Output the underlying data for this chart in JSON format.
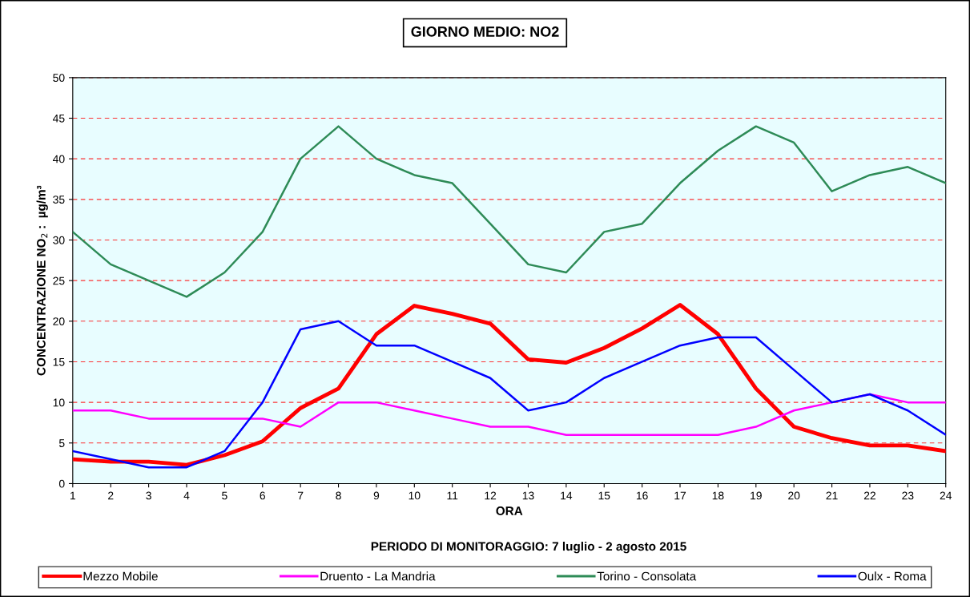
{
  "chart_data": {
    "type": "line",
    "title": "GIORNO MEDIO: NO2",
    "xlabel": "ORA",
    "ylabel": "CONCENTRAZIONE NO$_{2}$ :  µg/m³",
    "annotations": [
      "PERIODO DI MONITORAGGIO: 7 luglio - 2 agosto 2015"
    ],
    "categories": [
      "1",
      "2",
      "3",
      "4",
      "5",
      "6",
      "7",
      "8",
      "9",
      "10",
      "11",
      "12",
      "13",
      "14",
      "15",
      "16",
      "17",
      "18",
      "19",
      "20",
      "21",
      "22",
      "23",
      "24"
    ],
    "series": [
      {
        "name": "Mezzo Mobile",
        "color": "#ff0000",
        "values": [
          3.0,
          2.7,
          2.7,
          2.3,
          3.5,
          5.2,
          9.3,
          11.7,
          18.4,
          21.9,
          20.9,
          19.7,
          15.3,
          14.9,
          16.7,
          19.1,
          22.0,
          18.4,
          11.7,
          7.0,
          5.6,
          4.7,
          4.7,
          4.0
        ]
      },
      {
        "name": "Druento - La Mandria",
        "color": "#ff00ff",
        "values": [
          9,
          9,
          8,
          8,
          8,
          8,
          7,
          10,
          10,
          9,
          8,
          7,
          7,
          6,
          6,
          6,
          6,
          6,
          7,
          9,
          10,
          11,
          10,
          10
        ]
      },
      {
        "name": "Torino - Consolata",
        "color": "#2e8b57",
        "values": [
          31,
          27,
          25,
          23,
          26,
          31,
          40,
          44,
          40,
          38,
          37,
          32,
          27,
          26,
          31,
          32,
          37,
          41,
          44,
          42,
          36,
          38,
          39,
          37
        ]
      },
      {
        "name": "Oulx - Roma",
        "color": "#0000ff",
        "values": [
          4,
          3,
          2,
          2,
          4,
          10,
          19,
          20,
          17,
          17,
          15,
          13,
          9,
          10,
          13,
          15,
          17,
          18,
          18,
          14,
          10,
          11,
          9,
          6
        ]
      }
    ],
    "ylim": [
      0,
      50
    ],
    "yticks": [
      0,
      5,
      10,
      15,
      20,
      25,
      30,
      35,
      40,
      45,
      50
    ],
    "grid": "y",
    "legend": "bottom",
    "marker": "none",
    "line_style": "solid"
  }
}
